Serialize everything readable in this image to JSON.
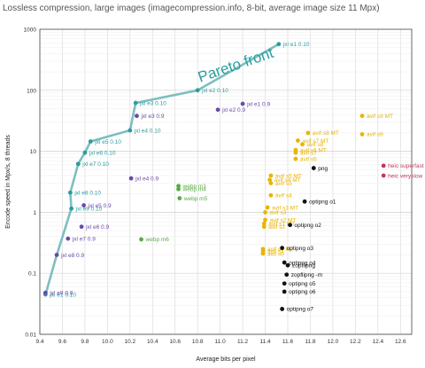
{
  "chart_data": {
    "type": "scatter",
    "title": "Lossless compression, large images (imagecompression.info, 8-bit, average image size 11 Mpx)",
    "xlabel": "Average bits per pixel",
    "ylabel": "Encode speed in Mpx/s, 8 threads",
    "x_scale": "linear",
    "y_scale": "log",
    "xlim": [
      9.4,
      12.7
    ],
    "ylim": [
      0.01,
      1000
    ],
    "x_ticks": [
      "9.4",
      "9.6",
      "9.8",
      "10.0",
      "10.2",
      "10.4",
      "10.6",
      "10.8",
      "11.0",
      "11.2",
      "11.4",
      "11.6",
      "11.8",
      "12.0",
      "12.2",
      "12.4",
      "12.6"
    ],
    "y_ticks": [
      "0.01",
      "0.1",
      "1",
      "10",
      "100",
      "1000"
    ],
    "grid": true,
    "annotation": "Pareto front",
    "pareto_front": [
      {
        "x": 9.45,
        "y": 0.045
      },
      {
        "x": 9.55,
        "y": 0.2
      },
      {
        "x": 9.68,
        "y": 1.15
      },
      {
        "x": 9.67,
        "y": 2.1
      },
      {
        "x": 9.74,
        "y": 6.2
      },
      {
        "x": 9.8,
        "y": 9.5
      },
      {
        "x": 9.85,
        "y": 14.5
      },
      {
        "x": 10.2,
        "y": 22
      },
      {
        "x": 10.25,
        "y": 62
      },
      {
        "x": 10.8,
        "y": 100
      },
      {
        "x": 11.52,
        "y": 570
      }
    ],
    "series": [
      {
        "color": "#2a9d9f",
        "points": [
          {
            "x": 11.52,
            "y": 570,
            "label": "jxl e1 0.10"
          },
          {
            "x": 10.8,
            "y": 100,
            "label": "jxl e2 0.10"
          },
          {
            "x": 10.25,
            "y": 62,
            "label": "jxl e3 0.10"
          },
          {
            "x": 10.2,
            "y": 22,
            "label": "jxl e4 0.10"
          },
          {
            "x": 9.85,
            "y": 14.5,
            "label": "jxl e5 0.10"
          },
          {
            "x": 9.8,
            "y": 9.5,
            "label": "jxl e6 0.10"
          },
          {
            "x": 9.74,
            "y": 6.2,
            "label": "jxl e7 0.10"
          },
          {
            "x": 9.67,
            "y": 2.1,
            "label": "jxl e8 0.10"
          },
          {
            "x": 9.68,
            "y": 1.15,
            "label": "jxl e9 0.10"
          },
          {
            "x": 9.45,
            "y": 0.045,
            "label": "jxl e1 0.10"
          }
        ]
      },
      {
        "color": "#6a4aab",
        "points": [
          {
            "x": 11.2,
            "y": 60,
            "label": "jxl e1 0.9"
          },
          {
            "x": 10.98,
            "y": 48,
            "label": "jxl e2 0.9"
          },
          {
            "x": 10.26,
            "y": 38,
            "label": "jxl e3 0.9"
          },
          {
            "x": 10.21,
            "y": 3.6,
            "label": "jxl e4 0.9"
          },
          {
            "x": 9.79,
            "y": 1.3,
            "label": "jxl e5 0.9"
          },
          {
            "x": 9.77,
            "y": 0.58,
            "label": "jxl e6 0.9"
          },
          {
            "x": 9.65,
            "y": 0.37,
            "label": "jxl e7 0.9"
          },
          {
            "x": 9.55,
            "y": 0.2,
            "label": "jxl e8 0.9"
          },
          {
            "x": 9.45,
            "y": 0.048,
            "label": "jxl e9 0.9"
          }
        ]
      },
      {
        "color": "#5aaa45",
        "points": [
          {
            "x": 10.63,
            "y": 2.7,
            "label": "webp m1"
          },
          {
            "x": 10.63,
            "y": 2.4,
            "label": "webp m4"
          },
          {
            "x": 10.64,
            "y": 1.7,
            "label": "webp m5"
          },
          {
            "x": 10.3,
            "y": 0.36,
            "label": "webp m6"
          }
        ]
      },
      {
        "color": "#e8b400",
        "points": [
          {
            "x": 12.26,
            "y": 38,
            "label": "avif s9 MT"
          },
          {
            "x": 12.26,
            "y": 19,
            "label": "avif s9"
          },
          {
            "x": 11.78,
            "y": 20,
            "label": "avif s8 MT"
          },
          {
            "x": 11.69,
            "y": 15,
            "label": "avif s7 MT"
          },
          {
            "x": 11.73,
            "y": 13,
            "label": "avif s8"
          },
          {
            "x": 11.67,
            "y": 10.5,
            "label": "avif s6 MT"
          },
          {
            "x": 11.67,
            "y": 9.5,
            "label": "avif s7"
          },
          {
            "x": 11.67,
            "y": 7.5,
            "label": "avif s6"
          },
          {
            "x": 11.45,
            "y": 4.0,
            "label": "avif s5 MT"
          },
          {
            "x": 11.44,
            "y": 3.4,
            "label": "avif s4 MT"
          },
          {
            "x": 11.45,
            "y": 3.0,
            "label": "avif s5"
          },
          {
            "x": 11.45,
            "y": 1.9,
            "label": "avif s4"
          },
          {
            "x": 11.42,
            "y": 1.2,
            "label": "avif s3 MT"
          },
          {
            "x": 11.4,
            "y": 1.0,
            "label": "avif s3"
          },
          {
            "x": 11.4,
            "y": 0.75,
            "label": "avif s2 MT"
          },
          {
            "x": 11.39,
            "y": 0.65,
            "label": "avif s1 MT"
          },
          {
            "x": 11.39,
            "y": 0.58,
            "label": "avif s2"
          },
          {
            "x": 11.38,
            "y": 0.25,
            "label": "avif s0 MT"
          },
          {
            "x": 11.38,
            "y": 0.23,
            "label": "avif s1"
          },
          {
            "x": 11.38,
            "y": 0.21,
            "label": "avif s0"
          }
        ]
      },
      {
        "color": "#111111",
        "points": [
          {
            "x": 11.83,
            "y": 5.3,
            "label": "png"
          },
          {
            "x": 11.75,
            "y": 1.5,
            "label": "optipng o1"
          },
          {
            "x": 11.62,
            "y": 0.62,
            "label": "optipng o2"
          },
          {
            "x": 11.55,
            "y": 0.26,
            "label": "optipng o3"
          },
          {
            "x": 11.57,
            "y": 0.15,
            "label": "optipng o4"
          },
          {
            "x": 11.6,
            "y": 0.135,
            "label": "zopflipng"
          },
          {
            "x": 11.59,
            "y": 0.095,
            "label": "zopflipng -m"
          },
          {
            "x": 11.57,
            "y": 0.068,
            "label": "optipng o5"
          },
          {
            "x": 11.57,
            "y": 0.05,
            "label": "optipng o6"
          },
          {
            "x": 11.55,
            "y": 0.026,
            "label": "optipng o7"
          }
        ]
      },
      {
        "color": "#c0385a",
        "points": [
          {
            "x": 12.45,
            "y": 5.8,
            "label": "heic superfast"
          },
          {
            "x": 12.45,
            "y": 4.0,
            "label": "heic veryslow"
          }
        ]
      }
    ]
  }
}
